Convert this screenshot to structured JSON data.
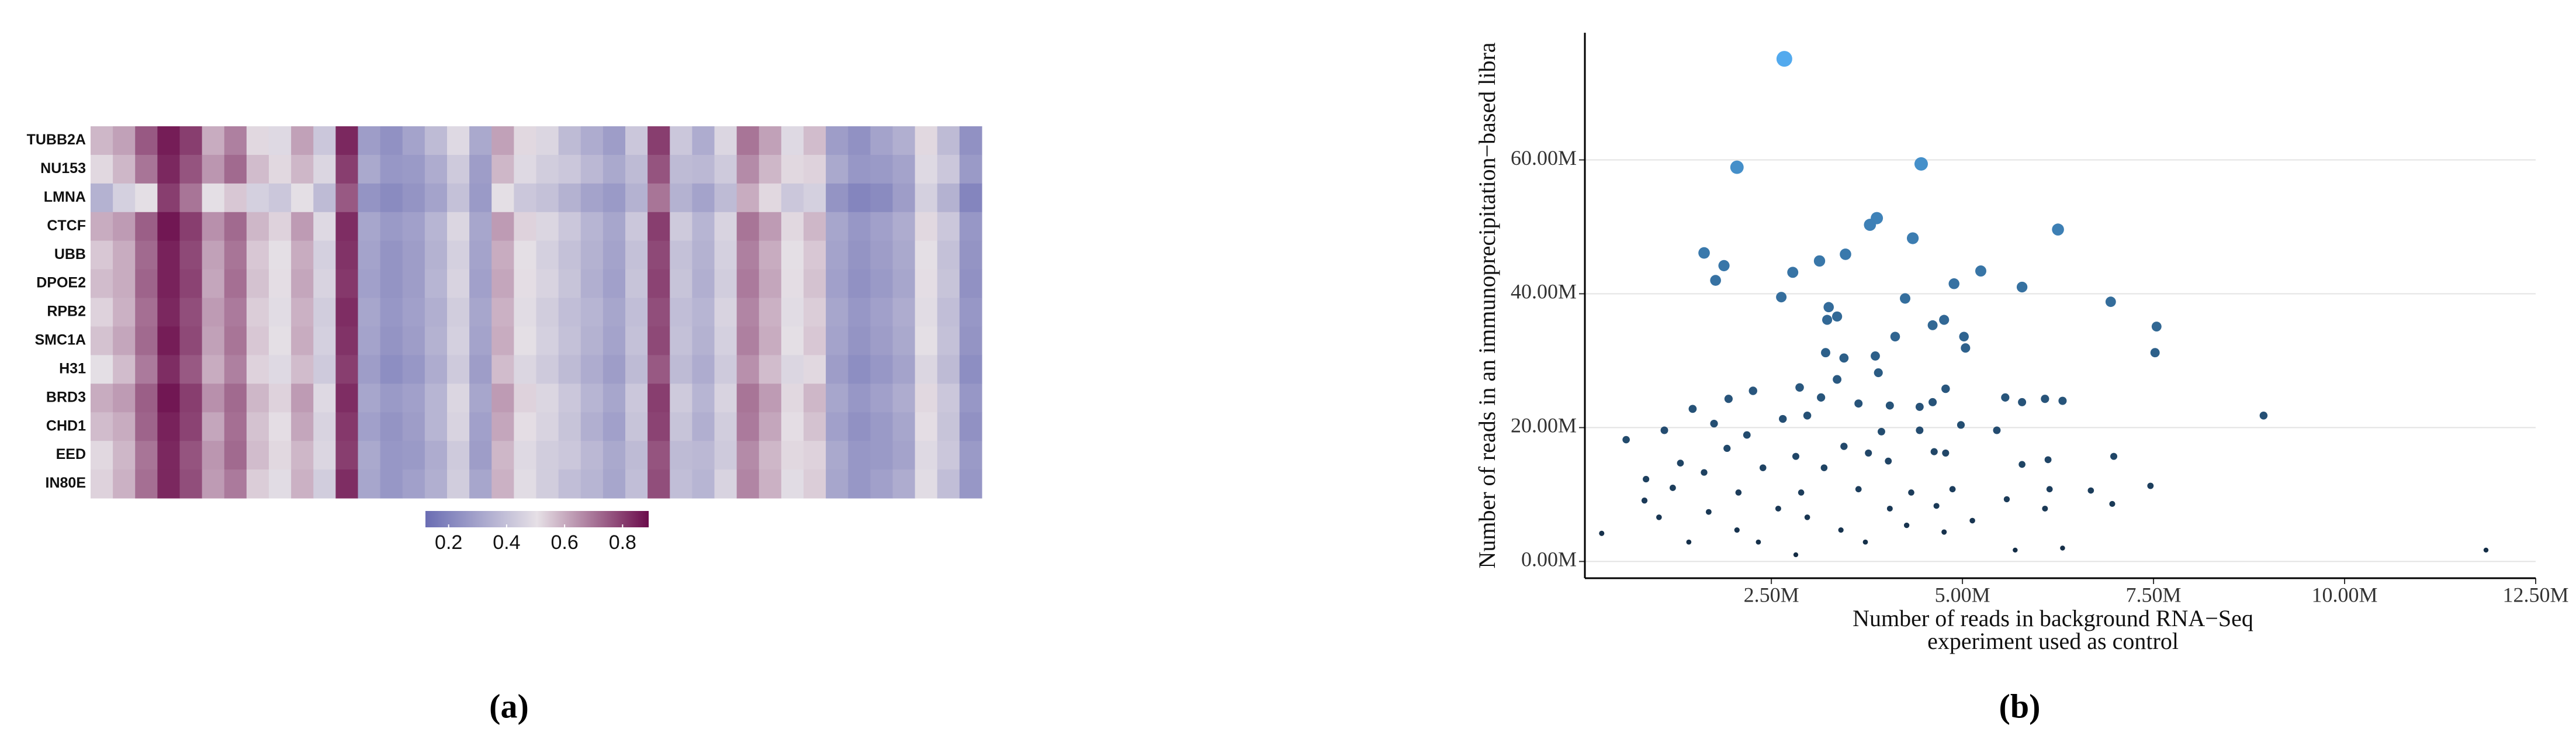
{
  "chart_data": [
    {
      "type": "heatmap",
      "caption": "(a)",
      "rows": [
        "TUBB2A",
        "NU153",
        "LMNA",
        "CTCF",
        "UBB",
        "DPOE2",
        "RPB2",
        "SMC1A",
        "H31",
        "BRD3",
        "CHD1",
        "EED",
        "IN80E"
      ],
      "values": [
        [
          0.58,
          0.62,
          0.75,
          0.86,
          0.8,
          0.6,
          0.68,
          0.52,
          0.48,
          0.62,
          0.42,
          0.84,
          0.28,
          0.24,
          0.3,
          0.38,
          0.48,
          0.32,
          0.62,
          0.52,
          0.47,
          0.38,
          0.33,
          0.28,
          0.42,
          0.8,
          0.42,
          0.33,
          0.47,
          0.7,
          0.62,
          0.48,
          0.57,
          0.28,
          0.24,
          0.3,
          0.34,
          0.52,
          0.38,
          0.24
        ],
        [
          0.52,
          0.58,
          0.7,
          0.84,
          0.76,
          0.64,
          0.72,
          0.57,
          0.52,
          0.58,
          0.47,
          0.8,
          0.32,
          0.26,
          0.27,
          0.33,
          0.43,
          0.28,
          0.58,
          0.48,
          0.44,
          0.42,
          0.37,
          0.32,
          0.38,
          0.76,
          0.38,
          0.37,
          0.43,
          0.66,
          0.58,
          0.52,
          0.53,
          0.32,
          0.26,
          0.27,
          0.3,
          0.48,
          0.42,
          0.27
        ],
        [
          0.35,
          0.45,
          0.5,
          0.8,
          0.7,
          0.5,
          0.55,
          0.45,
          0.42,
          0.5,
          0.38,
          0.75,
          0.25,
          0.22,
          0.25,
          0.3,
          0.4,
          0.27,
          0.5,
          0.42,
          0.4,
          0.35,
          0.3,
          0.27,
          0.35,
          0.7,
          0.35,
          0.3,
          0.38,
          0.6,
          0.52,
          0.42,
          0.45,
          0.25,
          0.2,
          0.22,
          0.28,
          0.45,
          0.35,
          0.2
        ],
        [
          0.6,
          0.63,
          0.74,
          0.87,
          0.8,
          0.65,
          0.72,
          0.58,
          0.53,
          0.63,
          0.48,
          0.83,
          0.31,
          0.27,
          0.29,
          0.36,
          0.47,
          0.31,
          0.63,
          0.53,
          0.47,
          0.42,
          0.36,
          0.31,
          0.42,
          0.8,
          0.43,
          0.36,
          0.46,
          0.7,
          0.63,
          0.52,
          0.58,
          0.31,
          0.26,
          0.29,
          0.33,
          0.52,
          0.42,
          0.26
        ],
        [
          0.55,
          0.6,
          0.72,
          0.85,
          0.78,
          0.62,
          0.7,
          0.55,
          0.5,
          0.6,
          0.45,
          0.82,
          0.3,
          0.25,
          0.28,
          0.35,
          0.45,
          0.3,
          0.6,
          0.5,
          0.45,
          0.4,
          0.35,
          0.3,
          0.4,
          0.78,
          0.4,
          0.35,
          0.45,
          0.68,
          0.6,
          0.5,
          0.55,
          0.3,
          0.25,
          0.28,
          0.32,
          0.5,
          0.4,
          0.25
        ],
        [
          0.57,
          0.6,
          0.73,
          0.85,
          0.79,
          0.61,
          0.71,
          0.56,
          0.51,
          0.61,
          0.46,
          0.81,
          0.29,
          0.25,
          0.28,
          0.36,
          0.46,
          0.29,
          0.61,
          0.51,
          0.46,
          0.41,
          0.34,
          0.29,
          0.41,
          0.79,
          0.41,
          0.34,
          0.44,
          0.69,
          0.61,
          0.51,
          0.56,
          0.29,
          0.24,
          0.27,
          0.31,
          0.51,
          0.41,
          0.24
        ],
        [
          0.53,
          0.59,
          0.71,
          0.84,
          0.77,
          0.63,
          0.69,
          0.54,
          0.49,
          0.59,
          0.44,
          0.83,
          0.31,
          0.26,
          0.29,
          0.34,
          0.44,
          0.31,
          0.59,
          0.49,
          0.44,
          0.39,
          0.36,
          0.31,
          0.39,
          0.77,
          0.39,
          0.36,
          0.46,
          0.67,
          0.59,
          0.49,
          0.54,
          0.31,
          0.26,
          0.29,
          0.33,
          0.49,
          0.39,
          0.26
        ],
        [
          0.56,
          0.61,
          0.72,
          0.86,
          0.78,
          0.62,
          0.7,
          0.55,
          0.5,
          0.6,
          0.45,
          0.82,
          0.3,
          0.25,
          0.28,
          0.35,
          0.45,
          0.3,
          0.6,
          0.5,
          0.45,
          0.4,
          0.35,
          0.3,
          0.4,
          0.78,
          0.4,
          0.35,
          0.45,
          0.68,
          0.6,
          0.5,
          0.55,
          0.3,
          0.25,
          0.28,
          0.32,
          0.5,
          0.4,
          0.25
        ],
        [
          0.5,
          0.57,
          0.69,
          0.83,
          0.75,
          0.6,
          0.68,
          0.53,
          0.48,
          0.57,
          0.43,
          0.8,
          0.28,
          0.23,
          0.26,
          0.33,
          0.43,
          0.28,
          0.57,
          0.47,
          0.43,
          0.38,
          0.33,
          0.28,
          0.38,
          0.75,
          0.38,
          0.33,
          0.43,
          0.65,
          0.57,
          0.47,
          0.52,
          0.28,
          0.23,
          0.26,
          0.3,
          0.47,
          0.38,
          0.23
        ],
        [
          0.6,
          0.63,
          0.74,
          0.87,
          0.8,
          0.65,
          0.72,
          0.58,
          0.53,
          0.63,
          0.48,
          0.83,
          0.31,
          0.27,
          0.29,
          0.36,
          0.47,
          0.31,
          0.63,
          0.53,
          0.47,
          0.42,
          0.36,
          0.31,
          0.42,
          0.8,
          0.43,
          0.36,
          0.46,
          0.7,
          0.63,
          0.52,
          0.58,
          0.31,
          0.26,
          0.29,
          0.33,
          0.52,
          0.42,
          0.26
        ],
        [
          0.57,
          0.6,
          0.73,
          0.85,
          0.79,
          0.61,
          0.71,
          0.56,
          0.51,
          0.61,
          0.46,
          0.81,
          0.29,
          0.25,
          0.28,
          0.36,
          0.46,
          0.29,
          0.61,
          0.51,
          0.46,
          0.41,
          0.34,
          0.29,
          0.41,
          0.79,
          0.41,
          0.34,
          0.44,
          0.69,
          0.61,
          0.51,
          0.56,
          0.29,
          0.24,
          0.27,
          0.31,
          0.51,
          0.41,
          0.24
        ],
        [
          0.52,
          0.58,
          0.7,
          0.84,
          0.76,
          0.64,
          0.72,
          0.57,
          0.52,
          0.58,
          0.47,
          0.8,
          0.32,
          0.26,
          0.27,
          0.33,
          0.43,
          0.28,
          0.58,
          0.48,
          0.44,
          0.42,
          0.37,
          0.32,
          0.38,
          0.76,
          0.38,
          0.37,
          0.43,
          0.66,
          0.58,
          0.52,
          0.53,
          0.32,
          0.26,
          0.27,
          0.3,
          0.48,
          0.42,
          0.27
        ],
        [
          0.53,
          0.59,
          0.71,
          0.84,
          0.77,
          0.63,
          0.69,
          0.54,
          0.49,
          0.59,
          0.44,
          0.83,
          0.31,
          0.26,
          0.29,
          0.34,
          0.44,
          0.31,
          0.59,
          0.49,
          0.44,
          0.39,
          0.36,
          0.31,
          0.39,
          0.77,
          0.39,
          0.36,
          0.46,
          0.67,
          0.59,
          0.49,
          0.54,
          0.31,
          0.26,
          0.29,
          0.33,
          0.49,
          0.39,
          0.26
        ]
      ],
      "zlim": [
        0.12,
        0.89
      ],
      "zticks": [
        0.2,
        0.4,
        0.6,
        0.8
      ],
      "colors": [
        "#6a6db3",
        "#e6e0e6",
        "#6b0c4b"
      ]
    },
    {
      "type": "scatter",
      "caption": "(b)",
      "xlabel": [
        "Number of reads in background RNA−Seq",
        "experiment used as control"
      ],
      "ylabel": "Number of reads in an immunoprecipitation−based libra",
      "x": [
        2670000,
        2050000,
        4460000,
        3880000,
        3790000,
        4350000,
        6250000,
        1620000,
        1880000,
        3130000,
        3470000,
        1770000,
        2780000,
        5240000,
        4890000,
        5780000,
        6940000,
        4250000,
        2630000,
        3250000,
        3230000,
        3360000,
        7540000,
        7520000,
        4610000,
        4760000,
        5020000,
        5040000,
        4120000,
        3210000,
        3450000,
        3860000,
        6080000,
        5780000,
        6310000,
        5560000,
        4780000,
        4610000,
        4440000,
        4050000,
        3640000,
        3150000,
        2870000,
        2260000,
        1940000,
        1470000,
        8940000,
        3360000,
        3900000,
        2970000,
        2650000,
        600000,
        1100000,
        1750000,
        2180000,
        3940000,
        4440000,
        4980000,
        5450000,
        3450000,
        4630000,
        3770000,
        2820000,
        1920000,
        1620000,
        860000,
        6980000,
        6120000,
        5780000,
        4780000,
        4030000,
        3190000,
        2390000,
        1210000,
        2070000,
        2890000,
        3640000,
        4330000,
        4870000,
        5580000,
        6140000,
        6680000,
        7460000,
        6960000,
        6080000,
        5130000,
        4270000,
        3410000,
        2590000,
        1680000,
        1030000,
        280000,
        1420000,
        2330000,
        3730000,
        4760000,
        5690000,
        6310000,
        11850000,
        2050000,
        2820000,
        4050000,
        840000,
        1310000,
        2970000,
        4660000
      ],
      "values": [
        75100000,
        58900000,
        59400000,
        51300000,
        50300000,
        48300000,
        49600000,
        46100000,
        44200000,
        44900000,
        45900000,
        42000000,
        43200000,
        43400000,
        41500000,
        41000000,
        38800000,
        39300000,
        39500000,
        38000000,
        36100000,
        36600000,
        35100000,
        31200000,
        35300000,
        36100000,
        33600000,
        31900000,
        33600000,
        31200000,
        30400000,
        30700000,
        24300000,
        23800000,
        24000000,
        24500000,
        25800000,
        23800000,
        23100000,
        23300000,
        23600000,
        24500000,
        26000000,
        25500000,
        24300000,
        22800000,
        21800000,
        27200000,
        28200000,
        21800000,
        21300000,
        18200000,
        19600000,
        20600000,
        18900000,
        19400000,
        19600000,
        20400000,
        19600000,
        17200000,
        16400000,
        16200000,
        15700000,
        16900000,
        13300000,
        12300000,
        15700000,
        15200000,
        14500000,
        16200000,
        15000000,
        14000000,
        14000000,
        11000000,
        10300000,
        10300000,
        10800000,
        10300000,
        10800000,
        9300000,
        10800000,
        10600000,
        11300000,
        8600000,
        7900000,
        6100000,
        5400000,
        4700000,
        7900000,
        7400000,
        6600000,
        4200000,
        2900000,
        2900000,
        2900000,
        4400000,
        1700000,
        2000000,
        1700000,
        4700000,
        1000000,
        7900000,
        9100000,
        14700000,
        6600000,
        8300000
      ],
      "color_scale": [
        "#132B43",
        "#56B1F7"
      ],
      "xlim": [
        60000,
        12500000
      ],
      "ylim": [
        -2500000,
        79000000
      ],
      "xticks": [
        {
          "value": 2500000,
          "label": "2.50M"
        },
        {
          "value": 5000000,
          "label": "5.00M"
        },
        {
          "value": 7500000,
          "label": "7.50M"
        },
        {
          "value": 10000000,
          "label": "10.00M"
        },
        {
          "value": 12500000,
          "label": "12.50M"
        }
      ],
      "yticks": [
        {
          "value": 0,
          "label": "0.00M"
        },
        {
          "value": 20000000,
          "label": "20.00M"
        },
        {
          "value": 40000000,
          "label": "40.00M"
        },
        {
          "value": 60000000,
          "label": "60.00M"
        }
      ],
      "grid": "y"
    }
  ]
}
